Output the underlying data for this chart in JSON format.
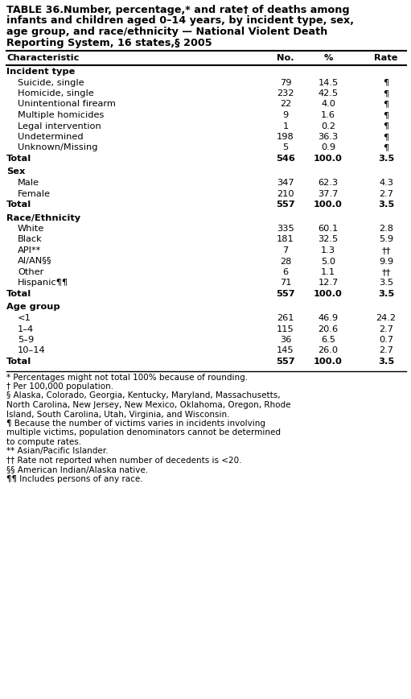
{
  "title_lines": [
    "TABLE 36.Number, percentage,* and rate† of deaths among",
    "infants and children aged 0–14 years, by incident type, sex,",
    "age group, and race/ethnicity — National Violent Death",
    "Reporting System, 16 states,§ 2005"
  ],
  "col_headers": [
    "Characteristic",
    "No.",
    "%",
    "Rate"
  ],
  "sections": [
    {
      "header": "Incident type",
      "rows": [
        {
          "label": "Suicide, single",
          "no": "79",
          "pct": "14.5",
          "rate": "¶",
          "indent": true
        },
        {
          "label": "Homicide, single",
          "no": "232",
          "pct": "42.5",
          "rate": "¶",
          "indent": true
        },
        {
          "label": "Unintentional firearm",
          "no": "22",
          "pct": "4.0",
          "rate": "¶",
          "indent": true
        },
        {
          "label": "Multiple homicides",
          "no": "9",
          "pct": "1.6",
          "rate": "¶",
          "indent": true
        },
        {
          "label": "Legal intervention",
          "no": "1",
          "pct": "0.2",
          "rate": "¶",
          "indent": true
        },
        {
          "label": "Undetermined",
          "no": "198",
          "pct": "36.3",
          "rate": "¶",
          "indent": true
        },
        {
          "label": "Unknown/Missing",
          "no": "5",
          "pct": "0.9",
          "rate": "¶",
          "indent": true
        }
      ],
      "total": {
        "label": "Total",
        "no": "546",
        "pct": "100.0",
        "rate": "3.5"
      }
    },
    {
      "header": "Sex",
      "rows": [
        {
          "label": "Male",
          "no": "347",
          "pct": "62.3",
          "rate": "4.3",
          "indent": true
        },
        {
          "label": "Female",
          "no": "210",
          "pct": "37.7",
          "rate": "2.7",
          "indent": true
        }
      ],
      "total": {
        "label": "Total",
        "no": "557",
        "pct": "100.0",
        "rate": "3.5"
      }
    },
    {
      "header": "Race/Ethnicity",
      "rows": [
        {
          "label": "White",
          "no": "335",
          "pct": "60.1",
          "rate": "2.8",
          "indent": true
        },
        {
          "label": "Black",
          "no": "181",
          "pct": "32.5",
          "rate": "5.9",
          "indent": true
        },
        {
          "label": "API**",
          "no": "7",
          "pct": "1.3",
          "rate": "††",
          "indent": true
        },
        {
          "label": "AI/AN§§",
          "no": "28",
          "pct": "5.0",
          "rate": "9.9",
          "indent": true
        },
        {
          "label": "Other",
          "no": "6",
          "pct": "1.1",
          "rate": "††",
          "indent": true
        },
        {
          "label": "Hispanic¶¶",
          "no": "71",
          "pct": "12.7",
          "rate": "3.5",
          "indent": true
        }
      ],
      "total": {
        "label": "Total",
        "no": "557",
        "pct": "100.0",
        "rate": "3.5"
      }
    },
    {
      "header": "Age group",
      "rows": [
        {
          "label": "<1",
          "no": "261",
          "pct": "46.9",
          "rate": "24.2",
          "indent": true
        },
        {
          "label": "1–4",
          "no": "115",
          "pct": "20.6",
          "rate": "2.7",
          "indent": true
        },
        {
          "label": "5–9",
          "no": "36",
          "pct": "6.5",
          "rate": "0.7",
          "indent": true
        },
        {
          "label": "10–14",
          "no": "145",
          "pct": "26.0",
          "rate": "2.7",
          "indent": true
        }
      ],
      "total": {
        "label": "Total",
        "no": "557",
        "pct": "100.0",
        "rate": "3.5"
      }
    }
  ],
  "footnotes": [
    {
      "text": "* Percentages might not total 100% because of rounding.",
      "continuation_indent": "  "
    },
    {
      "text": "† Per 100,000 population.",
      "continuation_indent": "  "
    },
    {
      "text": "§ Alaska, Colorado, Georgia, Kentucky, Maryland, Massachusetts, North Carolina, New Jersey, New Mexico, Oklahoma, Oregon, Rhode Island, South Carolina, Utah, Virginia, and Wisconsin.",
      "continuation_indent": "   "
    },
    {
      "text": "¶ Because the number of victims varies in incidents involving multiple victims, population denominators cannot be determined to compute rates.",
      "continuation_indent": "   "
    },
    {
      "text": "** Asian/Pacific Islander.",
      "continuation_indent": "   "
    },
    {
      "text": "†† Rate not reported when number of decedents is <20.",
      "continuation_indent": "   "
    },
    {
      "text": "§§ American Indian/Alaska native.",
      "continuation_indent": "   "
    },
    {
      "text": "¶¶ Includes persons of any race.",
      "continuation_indent": "   "
    }
  ],
  "bg_color": "white",
  "text_color": "black",
  "font_size": 8.2,
  "title_font_size": 9.2,
  "footnote_font_size": 7.5
}
